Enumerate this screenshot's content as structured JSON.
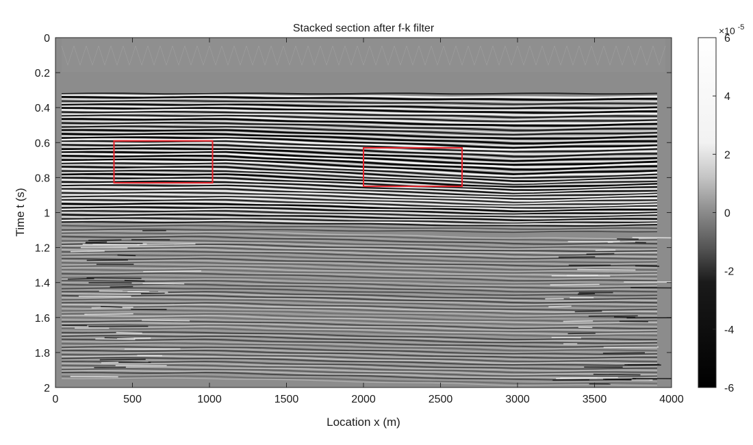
{
  "chart_data": {
    "type": "heatmap",
    "title": "Stacked section after f-k filter",
    "xlabel": "Location x (m)",
    "ylabel": "Time t (s)",
    "xlim": [
      0,
      4000
    ],
    "ylim": [
      0,
      2
    ],
    "y_reversed": true,
    "x_ticks": [
      0,
      500,
      1000,
      1500,
      2000,
      2500,
      3000,
      3500,
      4000
    ],
    "x_tick_labels": [
      "0",
      "500",
      "1000",
      "1500",
      "2000",
      "2500",
      "3000",
      "3500",
      "4000"
    ],
    "y_ticks": [
      0,
      0.2,
      0.4,
      0.6,
      0.8,
      1,
      1.2,
      1.4,
      1.6,
      1.8,
      2
    ],
    "y_tick_labels": [
      "0",
      "0.2",
      "0.4",
      "0.6",
      "0.8",
      "1",
      "1.2",
      "1.4",
      "1.6",
      "1.8",
      "2"
    ],
    "grid": false,
    "colormap": "gray",
    "colorbar": {
      "range": [
        -6,
        6
      ],
      "ticks": [
        -6,
        -4,
        -2,
        0,
        2,
        4,
        6
      ],
      "tick_labels": [
        "-6",
        "-4",
        "-2",
        "0",
        "2",
        "4",
        "6"
      ],
      "exponent_base": "×10",
      "exponent_power": "-5",
      "placement": "right"
    },
    "annotations": [
      {
        "type": "rectangle",
        "x": [
          380,
          1020
        ],
        "y": [
          0.59,
          0.83
        ],
        "color": "#e8222a"
      },
      {
        "type": "rectangle",
        "x": [
          2000,
          2640
        ],
        "y": [
          0.63,
          0.85
        ],
        "color": "#e8222a"
      }
    ],
    "data_extent": {
      "x": [
        40,
        3960
      ],
      "y": [
        0.1,
        2
      ]
    }
  }
}
